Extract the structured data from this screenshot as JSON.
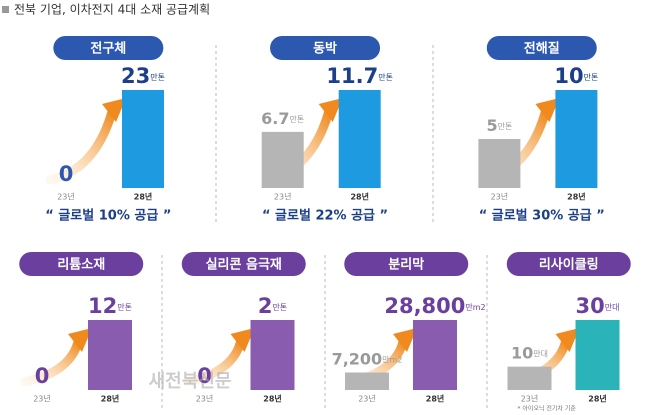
{
  "title": "전북 기업, 이차전지 4대 소재 공급계획",
  "watermark": "새전북신문",
  "chart_data": [
    {
      "type": "bar",
      "title": "전구체",
      "title_color": "#2c58b0",
      "categories": [
        "23년",
        "28년"
      ],
      "values": [
        0,
        23
      ],
      "value_labels": [
        "0",
        "23만톤"
      ],
      "colors": [
        "#b5b5b5",
        "#1e9be0"
      ],
      "annotation": "“ 글로벌 10% 공급 ”"
    },
    {
      "type": "bar",
      "title": "동박",
      "title_color": "#2c58b0",
      "categories": [
        "23년",
        "28년"
      ],
      "values": [
        6.7,
        11.7
      ],
      "value_labels": [
        "6.7만톤",
        "11.7만톤"
      ],
      "colors": [
        "#b5b5b5",
        "#1e9be0"
      ],
      "annotation": "“ 글로벌 22% 공급 ”"
    },
    {
      "type": "bar",
      "title": "전해질",
      "title_color": "#2c58b0",
      "categories": [
        "23년",
        "28년"
      ],
      "values": [
        5,
        10
      ],
      "value_labels": [
        "5만톤",
        "10만톤"
      ],
      "colors": [
        "#b5b5b5",
        "#1e9be0"
      ],
      "annotation": "“ 글로벌 30% 공급 ”"
    },
    {
      "type": "bar",
      "title": "리튬소재",
      "title_color": "#6b3f9e",
      "categories": [
        "23년",
        "28년"
      ],
      "values": [
        0,
        12
      ],
      "value_labels": [
        "0",
        "12만톤"
      ],
      "colors": [
        "#b5b5b5",
        "#8a5cb0"
      ]
    },
    {
      "type": "bar",
      "title": "실리콘 음극재",
      "title_color": "#6b3f9e",
      "categories": [
        "23년",
        "28년"
      ],
      "values": [
        0,
        2
      ],
      "value_labels": [
        "0",
        "2만톤"
      ],
      "colors": [
        "#b5b5b5",
        "#8a5cb0"
      ]
    },
    {
      "type": "bar",
      "title": "분리막",
      "title_color": "#6b3f9e",
      "categories": [
        "23년",
        "28년"
      ],
      "values": [
        7200,
        28800
      ],
      "value_labels": [
        "7,200만m2",
        "28,800만m2"
      ],
      "colors": [
        "#b5b5b5",
        "#8a5cb0"
      ]
    },
    {
      "type": "bar",
      "title": "리사이클링",
      "title_color": "#6b3f9e",
      "categories": [
        "23년",
        "28년"
      ],
      "values": [
        10,
        30
      ],
      "value_labels": [
        "10만대",
        "30만대"
      ],
      "colors": [
        "#b5b5b5",
        "#2ab3b8"
      ],
      "note": "* 아이오닉 전기차 기준"
    }
  ]
}
